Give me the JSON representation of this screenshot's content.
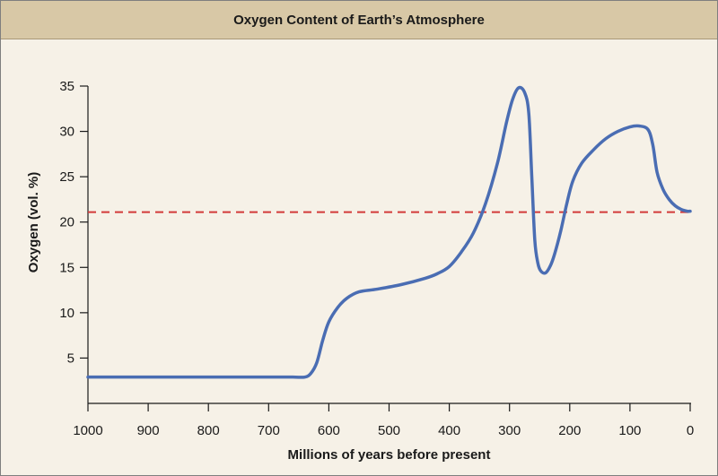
{
  "chart_data": {
    "type": "line",
    "title": "Oxygen Content of Earth’s Atmosphere",
    "xlabel": "Millions of years before present",
    "ylabel": "Oxygen (vol. %)",
    "xlim": [
      1000,
      0
    ],
    "ylim": [
      0,
      36
    ],
    "x_ticks": [
      1000,
      900,
      800,
      700,
      600,
      500,
      400,
      300,
      200,
      100,
      0
    ],
    "y_ticks": [
      5,
      10,
      15,
      20,
      25,
      30,
      35
    ],
    "grid": false,
    "legend": "none",
    "series": [
      {
        "color": "#4a6db3",
        "x": [
          1000,
          900,
          800,
          700,
          660,
          640,
          630,
          620,
          610,
          600,
          585,
          570,
          550,
          520,
          480,
          440,
          420,
          400,
          380,
          360,
          340,
          320,
          305,
          295,
          285,
          275,
          268,
          263,
          258,
          253,
          248,
          240,
          232,
          225,
          215,
          205,
          195,
          180,
          160,
          140,
          120,
          100,
          85,
          70,
          62,
          55,
          45,
          35,
          25,
          15,
          5,
          0
        ],
        "y": [
          2.9,
          2.9,
          2.9,
          2.9,
          2.9,
          2.9,
          3.3,
          4.5,
          7.0,
          9.0,
          10.6,
          11.6,
          12.3,
          12.6,
          13.1,
          13.8,
          14.3,
          15.1,
          16.7,
          18.8,
          22.0,
          26.5,
          31.0,
          33.5,
          34.8,
          34.3,
          32.0,
          25.0,
          18.0,
          15.5,
          14.6,
          14.4,
          15.2,
          16.5,
          19.0,
          22.0,
          24.5,
          26.5,
          28.0,
          29.2,
          30.0,
          30.5,
          30.6,
          30.2,
          28.5,
          25.5,
          23.6,
          22.5,
          21.8,
          21.4,
          21.2,
          21.2
        ]
      }
    ],
    "reference_line": {
      "y": 21.1,
      "style": "dashed",
      "color": "#d23a3a"
    },
    "colors": {
      "background": "#f6f1e7",
      "header": "#d8c8a6",
      "axis": "#1a1a1a"
    }
  }
}
